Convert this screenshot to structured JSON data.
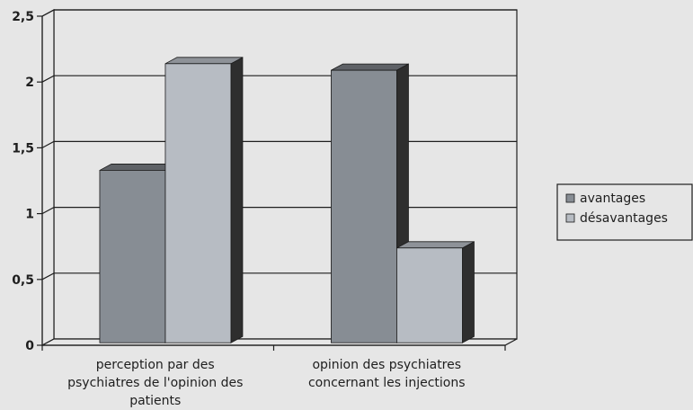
{
  "chart_data": {
    "type": "bar",
    "title": "",
    "xlabel": "",
    "ylabel": "",
    "ylim": [
      0,
      2.5
    ],
    "yticks": [
      "0",
      "0,5",
      "1",
      "1,5",
      "2",
      "2,5"
    ],
    "categories": [
      [
        "perception par des",
        "psychiatres de l'opinion des",
        "patients"
      ],
      [
        "opinion des psychiatres",
        "concernant les injections"
      ]
    ],
    "series": [
      {
        "name": "avantages",
        "values": [
          1.31,
          2.07
        ]
      },
      {
        "name": "désavantages",
        "values": [
          2.12,
          0.72
        ]
      }
    ],
    "grid": true,
    "legend_position": "right",
    "three_d": true
  },
  "colors": {
    "avantages": "#878d94",
    "desavantages": "#b7bcc3",
    "bar_side": "#2e2e2e",
    "bar_top_dark": "#5e6166",
    "bar_top_light": "#8e9298",
    "gridline": "#1e1e1e",
    "axis": "#1e1e1e"
  }
}
